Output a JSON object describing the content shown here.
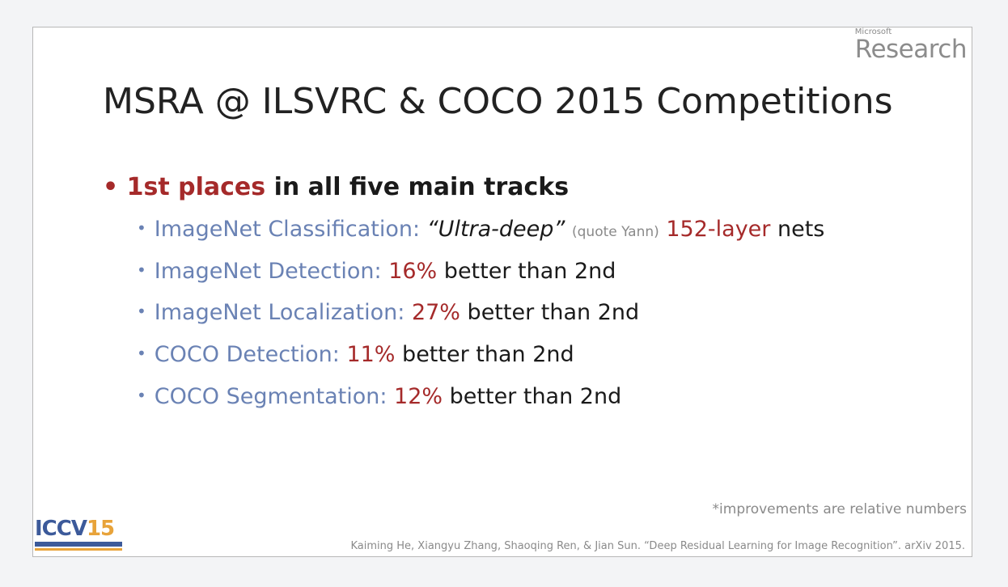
{
  "logo": {
    "small": "Microsoft",
    "big": "Research"
  },
  "title": "MSRA @ ILSVRC & COCO 2015 Competitions",
  "main_bullet": {
    "highlight": "1st places",
    "rest": " in all five main tracks"
  },
  "items": [
    {
      "label": "ImageNet Classification:",
      "parts": [
        " ",
        "“Ultra-deep”",
        " ",
        "(quote Yann)",
        " ",
        "152-layer",
        " nets"
      ]
    },
    {
      "label": "ImageNet Detection:",
      "value": "16%",
      "rest": " better than 2nd"
    },
    {
      "label": "ImageNet Localization:",
      "value": "27%",
      "rest": " better than 2nd"
    },
    {
      "label": "COCO Detection:",
      "value": "11%",
      "rest": " better than 2nd"
    },
    {
      "label": "COCO Segmentation:",
      "value": "12%",
      "rest": " better than 2nd"
    }
  ],
  "footnote": "*improvements are relative numbers",
  "citation": "Kaiming He, Xiangyu Zhang, Shaoqing Ren, & Jian Sun. “Deep Residual Learning for Image Recognition”. arXiv 2015.",
  "iccv": {
    "text": "ICCV",
    "year": "15"
  }
}
